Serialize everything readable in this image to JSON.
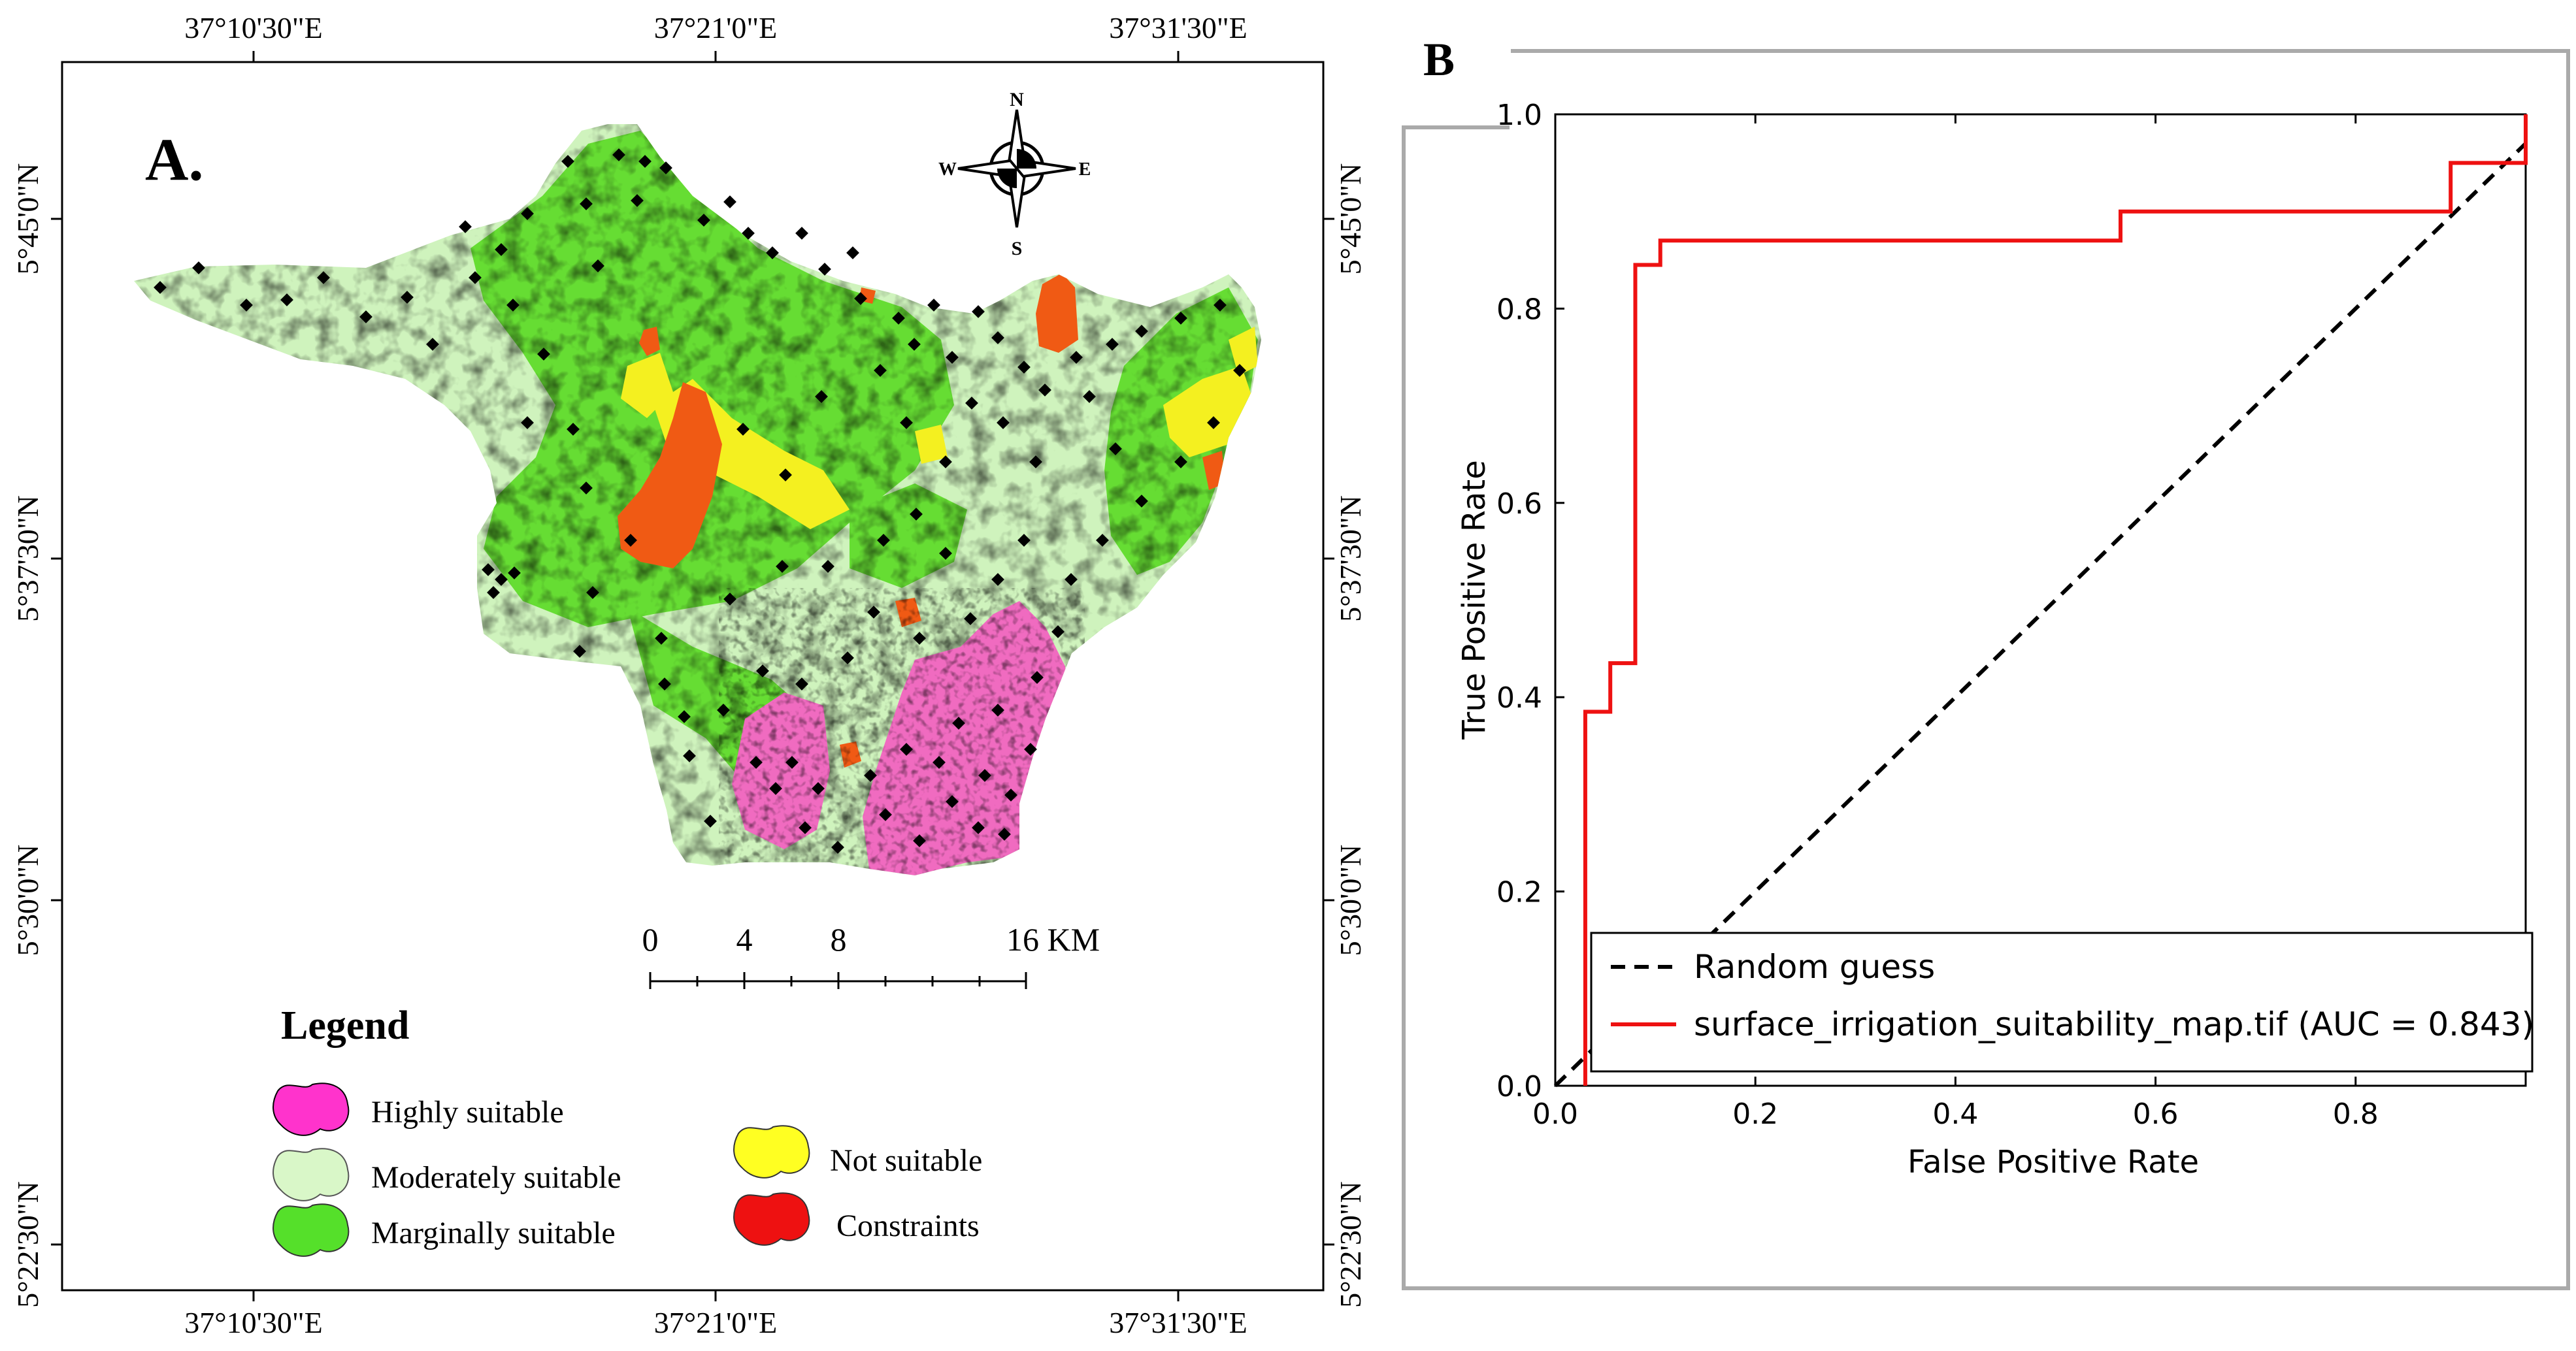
{
  "panel_a": {
    "label": "A.",
    "top_lon_labels": [
      "37°10'30\"E",
      "37°21'0\"E",
      "37°31'30\"E"
    ],
    "bottom_lon_labels": [
      "37°10'30\"E",
      "37°21'0\"E",
      "37°31'30\"E"
    ],
    "left_lat_labels": [
      "5°45'0\"N",
      "5°37'30\"N",
      "5°30'0\"N",
      "5°22'30\"N"
    ],
    "right_lat_labels": [
      "5°45'0\"N",
      "5°37'30\"N",
      "5°30'0\"N",
      "5°22'30\"N"
    ],
    "compass": {
      "n": "N",
      "s": "S",
      "e": "E",
      "w": "W"
    },
    "scale_bar": {
      "labels": [
        "0",
        "4",
        "8",
        "16 KM"
      ]
    },
    "legend": {
      "title": "Legend",
      "items": [
        {
          "label": "Highly suitable",
          "color": "#ff33cc"
        },
        {
          "label": "Moderately suitable",
          "color": "#d9f7c8"
        },
        {
          "label": "Marginally suitable",
          "color": "#55e02a"
        },
        {
          "label": "Not suitable",
          "color": "#ffff22"
        },
        {
          "label": "Constraints",
          "color": "#ee1111"
        }
      ]
    },
    "map_colors": {
      "highly": "#f06bc0",
      "moderate": "#cff3bd",
      "marginal": "#66dd33",
      "not_suitable": "#f4f020",
      "constraint": "#f05a14",
      "points": "#000000"
    }
  },
  "panel_b": {
    "label": "B",
    "chart_data": {
      "type": "line",
      "xlabel": "False Positive Rate",
      "ylabel": "True Positive Rate",
      "xlim": [
        0,
        0.97
      ],
      "ylim": [
        0,
        1.0
      ],
      "x_ticks": [
        0.0,
        0.2,
        0.4,
        0.6,
        0.8
      ],
      "x_tick_labels": [
        "0.0",
        "0.2",
        "0.4",
        "0.6",
        "0.8"
      ],
      "y_ticks": [
        0.0,
        0.2,
        0.4,
        0.6,
        0.8,
        1.0
      ],
      "y_tick_labels": [
        "0.0",
        "0.2",
        "0.4",
        "0.6",
        "0.8",
        "1.0"
      ],
      "series": [
        {
          "name": "Random guess",
          "style": "dashed",
          "color": "#000000",
          "x": [
            0,
            1
          ],
          "y": [
            0,
            1
          ]
        },
        {
          "name": "surface_irrigation_suitability_map.tif (AUC = 0.843)",
          "style": "solid",
          "color": "#ee1111",
          "x": [
            0.03,
            0.03,
            0.055,
            0.055,
            0.08,
            0.08,
            0.105,
            0.105,
            0.565,
            0.565,
            0.895,
            0.895,
            0.97,
            0.97
          ],
          "y": [
            0.0,
            0.385,
            0.385,
            0.435,
            0.435,
            0.845,
            0.845,
            0.87,
            0.87,
            0.9,
            0.9,
            0.95,
            0.95,
            1.0
          ]
        }
      ],
      "legend_position": "lower-right"
    }
  }
}
